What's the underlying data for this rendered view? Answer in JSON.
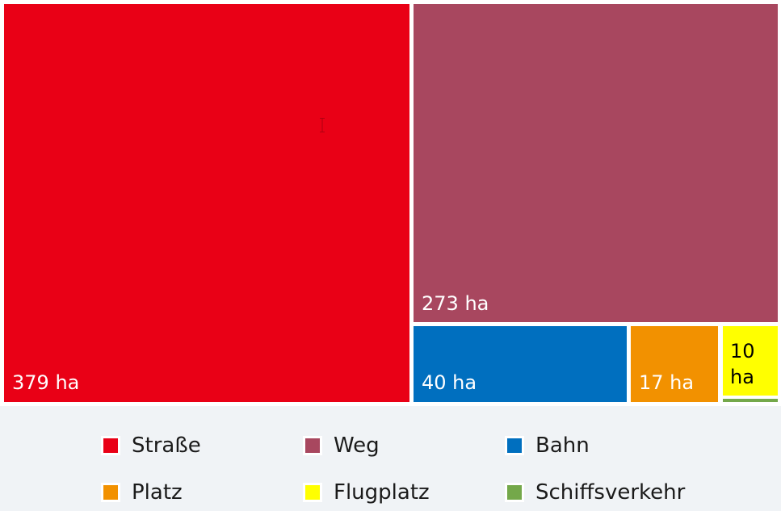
{
  "chart_data": {
    "type": "treemap",
    "unit": "ha",
    "series": [
      {
        "name": "Straße",
        "value": 379,
        "label": "379 ha",
        "color": "#e90016"
      },
      {
        "name": "Weg",
        "value": 273,
        "label": "273 ha",
        "color": "#a8475f"
      },
      {
        "name": "Bahn",
        "value": 40,
        "label": "40 ha",
        "color": "#006fbf"
      },
      {
        "name": "Platz",
        "value": 17,
        "label": "17 ha",
        "color": "#f29100"
      },
      {
        "name": "Flugplatz",
        "value": 10,
        "label": "10\nha",
        "color": "#ffff00"
      },
      {
        "name": "Schiffsverkehr",
        "value": 1,
        "label": "",
        "color": "#74a84a"
      }
    ],
    "legend_position": "bottom"
  }
}
